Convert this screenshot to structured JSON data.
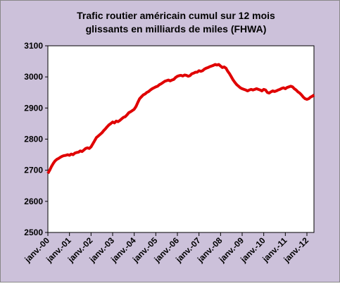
{
  "chart_data": {
    "type": "line",
    "title": [
      "Trafic routier américain cumul sur 12 mois",
      "glissants en milliards de miles (FHWA)"
    ],
    "categories": [
      "janv.-00",
      null,
      null,
      null,
      null,
      null,
      null,
      null,
      null,
      null,
      null,
      null,
      "janv.-01",
      null,
      null,
      null,
      null,
      null,
      null,
      null,
      null,
      null,
      null,
      null,
      "janv.-02",
      null,
      null,
      null,
      null,
      null,
      null,
      null,
      null,
      null,
      null,
      null,
      "janv.-03",
      null,
      null,
      null,
      null,
      null,
      null,
      null,
      null,
      null,
      null,
      null,
      "janv.-04",
      null,
      null,
      null,
      null,
      null,
      null,
      null,
      null,
      null,
      null,
      null,
      "janv.-05",
      null,
      null,
      null,
      null,
      null,
      null,
      null,
      null,
      null,
      null,
      null,
      "janv.-06",
      null,
      null,
      null,
      null,
      null,
      null,
      null,
      null,
      null,
      null,
      null,
      "janv.-07",
      null,
      null,
      null,
      null,
      null,
      null,
      null,
      null,
      null,
      null,
      null,
      "janv.-08",
      null,
      null,
      null,
      null,
      null,
      null,
      null,
      null,
      null,
      null,
      null,
      "janv.-09",
      null,
      null,
      null,
      null,
      null,
      null,
      null,
      null,
      null,
      null,
      null,
      "janv.-10",
      null,
      null,
      null,
      null,
      null,
      null,
      null,
      null,
      null,
      null,
      null,
      "janv.-11",
      null,
      null,
      null,
      null,
      null,
      null,
      null,
      null,
      null,
      null,
      null,
      "janv.-12",
      null,
      null,
      null,
      null
    ],
    "values": [
      2690,
      2700,
      2712,
      2722,
      2730,
      2735,
      2738,
      2742,
      2745,
      2747,
      2748,
      2750,
      2748,
      2752,
      2750,
      2755,
      2757,
      2758,
      2762,
      2760,
      2765,
      2770,
      2772,
      2770,
      2775,
      2785,
      2795,
      2805,
      2810,
      2815,
      2820,
      2827,
      2833,
      2840,
      2846,
      2850,
      2855,
      2852,
      2858,
      2856,
      2860,
      2865,
      2870,
      2872,
      2878,
      2885,
      2888,
      2892,
      2896,
      2905,
      2918,
      2930,
      2936,
      2942,
      2945,
      2950,
      2953,
      2958,
      2962,
      2965,
      2968,
      2970,
      2975,
      2978,
      2982,
      2986,
      2988,
      2990,
      2987,
      2990,
      2992,
      2998,
      3002,
      3004,
      3005,
      3003,
      3006,
      3005,
      3002,
      3004,
      3010,
      3012,
      3015,
      3015,
      3020,
      3018,
      3020,
      3025,
      3028,
      3030,
      3033,
      3035,
      3037,
      3040,
      3038,
      3040,
      3035,
      3030,
      3032,
      3028,
      3018,
      3010,
      3000,
      2990,
      2982,
      2975,
      2970,
      2965,
      2962,
      2960,
      2958,
      2955,
      2958,
      2960,
      2958,
      2960,
      2962,
      2960,
      2958,
      2955,
      2960,
      2958,
      2950,
      2948,
      2952,
      2955,
      2953,
      2955,
      2958,
      2960,
      2963,
      2965,
      2962,
      2966,
      2968,
      2970,
      2968,
      2962,
      2958,
      2952,
      2948,
      2942,
      2935,
      2930,
      2928,
      2930,
      2935,
      2938,
      2942
    ],
    "color": "#e00000",
    "ylim": [
      2500,
      3100
    ],
    "yticks": [
      2500,
      2600,
      2700,
      2800,
      2900,
      3000,
      3100
    ],
    "grid": false
  }
}
